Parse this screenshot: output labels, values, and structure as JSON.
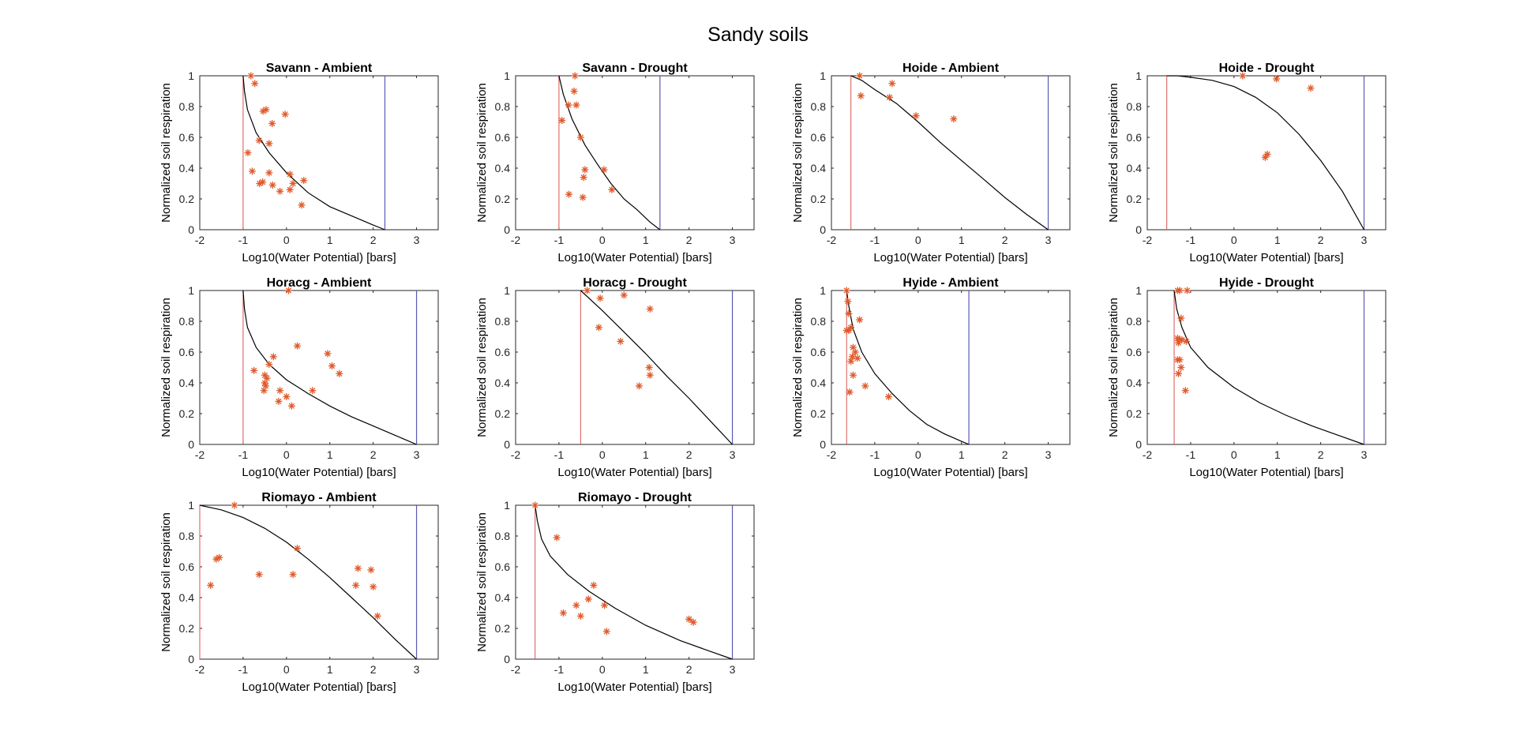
{
  "figure": {
    "title": "Sandy soils",
    "colors": {
      "axes": "#262626",
      "model_curve": "#000000",
      "lower_limit_line": "#d9534f",
      "upper_limit_line": "#5a5ab4",
      "observations": "#e05a2b"
    }
  },
  "chart_data": [
    {
      "type": "scatter",
      "title": "Savann - Ambient",
      "xlabel": "Log10(Water Potential) [bars]",
      "ylabel": "Normalized soil respiration",
      "xlim": [
        -2,
        3.5
      ],
      "ylim": [
        0,
        1
      ],
      "xticks": [
        -2,
        -1,
        0,
        1,
        2,
        3
      ],
      "yticks": [
        0,
        0.2,
        0.4,
        0.6,
        0.8,
        1
      ],
      "grid": false,
      "lower_limit": -1.0,
      "upper_limit": 2.27,
      "curve": [
        [
          -1.0,
          1.0
        ],
        [
          -0.97,
          0.9
        ],
        [
          -0.9,
          0.78
        ],
        [
          -0.7,
          0.63
        ],
        [
          -0.4,
          0.5
        ],
        [
          0,
          0.37
        ],
        [
          0.5,
          0.24
        ],
        [
          1.0,
          0.15
        ],
        [
          1.5,
          0.09
        ],
        [
          2.0,
          0.03
        ],
        [
          2.27,
          0.0
        ]
      ],
      "points": [
        [
          -0.82,
          1.0
        ],
        [
          -0.73,
          0.95
        ],
        [
          -0.54,
          0.77
        ],
        [
          -0.47,
          0.78
        ],
        [
          -0.89,
          0.5
        ],
        [
          -0.79,
          0.38
        ],
        [
          -0.63,
          0.58
        ],
        [
          -0.4,
          0.56
        ],
        [
          -0.33,
          0.69
        ],
        [
          -0.03,
          0.75
        ],
        [
          -0.4,
          0.37
        ],
        [
          -0.55,
          0.31
        ],
        [
          -0.62,
          0.3
        ],
        [
          -0.32,
          0.29
        ],
        [
          -0.15,
          0.25
        ],
        [
          0.08,
          0.36
        ],
        [
          0.15,
          0.3
        ],
        [
          0.08,
          0.26
        ],
        [
          0.4,
          0.32
        ],
        [
          0.35,
          0.16
        ]
      ]
    },
    {
      "type": "scatter",
      "title": "Savann - Drought",
      "xlabel": "Log10(Water Potential) [bars]",
      "ylabel": "Normalized soil respiration",
      "xlim": [
        -2,
        3.5
      ],
      "ylim": [
        0,
        1
      ],
      "xticks": [
        -2,
        -1,
        0,
        1,
        2,
        3
      ],
      "yticks": [
        0,
        0.2,
        0.4,
        0.6,
        0.8,
        1
      ],
      "grid": false,
      "lower_limit": -1.0,
      "upper_limit": 1.33,
      "curve": [
        [
          -1.0,
          1.0
        ],
        [
          -0.9,
          0.88
        ],
        [
          -0.7,
          0.72
        ],
        [
          -0.4,
          0.55
        ],
        [
          -0.1,
          0.42
        ],
        [
          0.2,
          0.3
        ],
        [
          0.5,
          0.2
        ],
        [
          0.8,
          0.13
        ],
        [
          1.1,
          0.05
        ],
        [
          1.33,
          0.0
        ]
      ],
      "points": [
        [
          -0.63,
          1.0
        ],
        [
          -0.65,
          0.9
        ],
        [
          -0.78,
          0.81
        ],
        [
          -0.6,
          0.81
        ],
        [
          -0.93,
          0.71
        ],
        [
          -0.5,
          0.6
        ],
        [
          -0.4,
          0.39
        ],
        [
          -0.43,
          0.34
        ],
        [
          0.04,
          0.39
        ],
        [
          -0.77,
          0.23
        ],
        [
          -0.45,
          0.21
        ],
        [
          0.22,
          0.26
        ]
      ]
    },
    {
      "type": "scatter",
      "title": "Hoide - Ambient",
      "xlabel": "Log10(Water Potential) [bars]",
      "ylabel": "Normalized soil respiration",
      "xlim": [
        -2,
        3.5
      ],
      "ylim": [
        0,
        1
      ],
      "xticks": [
        -2,
        -1,
        0,
        1,
        2,
        3
      ],
      "yticks": [
        0,
        0.2,
        0.4,
        0.6,
        0.8,
        1
      ],
      "grid": false,
      "lower_limit": -1.55,
      "upper_limit": 3.0,
      "curve": [
        [
          -1.55,
          1.0
        ],
        [
          -1.3,
          0.97
        ],
        [
          -1.0,
          0.91
        ],
        [
          -0.5,
          0.82
        ],
        [
          0,
          0.7
        ],
        [
          0.5,
          0.57
        ],
        [
          1.0,
          0.45
        ],
        [
          1.5,
          0.33
        ],
        [
          2.0,
          0.21
        ],
        [
          2.5,
          0.1
        ],
        [
          3.0,
          0.0
        ]
      ],
      "points": [
        [
          -1.35,
          1.0
        ],
        [
          -1.32,
          0.87
        ],
        [
          -0.6,
          0.95
        ],
        [
          -0.66,
          0.86
        ],
        [
          -0.05,
          0.74
        ],
        [
          0.82,
          0.72
        ]
      ]
    },
    {
      "type": "scatter",
      "title": "Hoide - Drought",
      "xlabel": "Log10(Water Potential) [bars]",
      "ylabel": "Normalized soil respiration",
      "xlim": [
        -2,
        3.5
      ],
      "ylim": [
        0,
        1
      ],
      "xticks": [
        -2,
        -1,
        0,
        1,
        2,
        3
      ],
      "yticks": [
        0,
        0.2,
        0.4,
        0.6,
        0.8,
        1
      ],
      "grid": false,
      "lower_limit": -1.55,
      "upper_limit": 3.0,
      "curve": [
        [
          -1.55,
          1.0
        ],
        [
          -1.3,
          1.0
        ],
        [
          -1.0,
          0.99
        ],
        [
          -0.5,
          0.97
        ],
        [
          0,
          0.93
        ],
        [
          0.5,
          0.86
        ],
        [
          1.0,
          0.76
        ],
        [
          1.5,
          0.62
        ],
        [
          2.0,
          0.45
        ],
        [
          2.5,
          0.25
        ],
        [
          3.0,
          0.0
        ]
      ],
      "points": [
        [
          0.2,
          1.0
        ],
        [
          0.98,
          0.98
        ],
        [
          1.77,
          0.92
        ],
        [
          0.72,
          0.47
        ],
        [
          0.77,
          0.49
        ]
      ]
    },
    {
      "type": "scatter",
      "title": "Horacg - Ambient",
      "xlabel": "Log10(Water Potential) [bars]",
      "ylabel": "Normalized soil respiration",
      "xlim": [
        -2,
        3.5
      ],
      "ylim": [
        0,
        1
      ],
      "xticks": [
        -2,
        -1,
        0,
        1,
        2,
        3
      ],
      "yticks": [
        0,
        0.2,
        0.4,
        0.6,
        0.8,
        1
      ],
      "grid": false,
      "lower_limit": -1.0,
      "upper_limit": 3.0,
      "curve": [
        [
          -1.0,
          1.0
        ],
        [
          -0.97,
          0.88
        ],
        [
          -0.9,
          0.76
        ],
        [
          -0.7,
          0.63
        ],
        [
          -0.4,
          0.52
        ],
        [
          0,
          0.42
        ],
        [
          0.5,
          0.33
        ],
        [
          1.0,
          0.25
        ],
        [
          1.5,
          0.18
        ],
        [
          2.0,
          0.12
        ],
        [
          2.5,
          0.06
        ],
        [
          3.0,
          0.0
        ]
      ],
      "points": [
        [
          0.05,
          1.0
        ],
        [
          -0.75,
          0.48
        ],
        [
          -0.5,
          0.45
        ],
        [
          -0.45,
          0.43
        ],
        [
          -0.5,
          0.4
        ],
        [
          -0.48,
          0.38
        ],
        [
          -0.52,
          0.35
        ],
        [
          -0.4,
          0.52
        ],
        [
          -0.3,
          0.57
        ],
        [
          0.25,
          0.64
        ],
        [
          -0.15,
          0.35
        ],
        [
          -0.18,
          0.28
        ],
        [
          0.0,
          0.31
        ],
        [
          0.12,
          0.25
        ],
        [
          0.6,
          0.35
        ],
        [
          0.95,
          0.59
        ],
        [
          1.05,
          0.51
        ],
        [
          1.22,
          0.46
        ]
      ]
    },
    {
      "type": "scatter",
      "title": "Horacg - Drought",
      "xlabel": "Log10(Water Potential) [bars]",
      "ylabel": "Normalized soil respiration",
      "xlim": [
        -2,
        3.5
      ],
      "ylim": [
        0,
        1
      ],
      "xticks": [
        -2,
        -1,
        0,
        1,
        2,
        3
      ],
      "yticks": [
        0,
        0.2,
        0.4,
        0.6,
        0.8,
        1
      ],
      "grid": false,
      "lower_limit": -0.5,
      "upper_limit": 3.0,
      "curve": [
        [
          -0.5,
          1.0
        ],
        [
          0,
          0.87
        ],
        [
          0.5,
          0.73
        ],
        [
          1.0,
          0.59
        ],
        [
          1.5,
          0.44
        ],
        [
          2.0,
          0.3
        ],
        [
          2.5,
          0.15
        ],
        [
          3.0,
          0.0
        ]
      ],
      "points": [
        [
          -0.35,
          1.0
        ],
        [
          -0.05,
          0.95
        ],
        [
          0.5,
          0.97
        ],
        [
          -0.08,
          0.76
        ],
        [
          0.42,
          0.67
        ],
        [
          1.1,
          0.88
        ],
        [
          1.08,
          0.5
        ],
        [
          1.1,
          0.45
        ],
        [
          0.85,
          0.38
        ]
      ]
    },
    {
      "type": "scatter",
      "title": "Hyide - Ambient",
      "xlabel": "Log10(Water Potential) [bars]",
      "ylabel": "Normalized soil respiration",
      "xlim": [
        -2,
        3.5
      ],
      "ylim": [
        0,
        1
      ],
      "xticks": [
        -2,
        -1,
        0,
        1,
        2,
        3
      ],
      "yticks": [
        0,
        0.2,
        0.4,
        0.6,
        0.8,
        1
      ],
      "grid": false,
      "lower_limit": -1.65,
      "upper_limit": 1.17,
      "curve": [
        [
          -1.65,
          1.0
        ],
        [
          -1.6,
          0.9
        ],
        [
          -1.5,
          0.75
        ],
        [
          -1.3,
          0.6
        ],
        [
          -1.0,
          0.46
        ],
        [
          -0.6,
          0.33
        ],
        [
          -0.2,
          0.22
        ],
        [
          0.2,
          0.13
        ],
        [
          0.6,
          0.07
        ],
        [
          1.0,
          0.02
        ],
        [
          1.17,
          0.0
        ]
      ],
      "points": [
        [
          -1.65,
          1.0
        ],
        [
          -1.62,
          0.93
        ],
        [
          -1.6,
          0.85
        ],
        [
          -1.55,
          0.76
        ],
        [
          -1.65,
          0.74
        ],
        [
          -1.6,
          0.74
        ],
        [
          -1.35,
          0.81
        ],
        [
          -1.5,
          0.63
        ],
        [
          -1.45,
          0.6
        ],
        [
          -1.52,
          0.57
        ],
        [
          -1.55,
          0.54
        ],
        [
          -1.4,
          0.56
        ],
        [
          -1.5,
          0.45
        ],
        [
          -1.22,
          0.38
        ],
        [
          -1.58,
          0.34
        ],
        [
          -0.68,
          0.31
        ]
      ]
    },
    {
      "type": "scatter",
      "title": "Hyide - Drought",
      "xlabel": "Log10(Water Potential) [bars]",
      "ylabel": "Normalized soil respiration",
      "xlim": [
        -2,
        3.5
      ],
      "ylim": [
        0,
        1
      ],
      "xticks": [
        -2,
        -1,
        0,
        1,
        2,
        3
      ],
      "yticks": [
        0,
        0.2,
        0.4,
        0.6,
        0.8,
        1
      ],
      "grid": false,
      "lower_limit": -1.38,
      "upper_limit": 3.0,
      "curve": [
        [
          -1.38,
          1.0
        ],
        [
          -1.32,
          0.88
        ],
        [
          -1.2,
          0.76
        ],
        [
          -1.0,
          0.63
        ],
        [
          -0.6,
          0.5
        ],
        [
          0,
          0.37
        ],
        [
          0.6,
          0.27
        ],
        [
          1.2,
          0.19
        ],
        [
          1.8,
          0.12
        ],
        [
          2.4,
          0.06
        ],
        [
          3.0,
          0.0
        ]
      ],
      "points": [
        [
          -1.3,
          1.0
        ],
        [
          -1.25,
          1.0
        ],
        [
          -1.08,
          1.0
        ],
        [
          -1.22,
          0.82
        ],
        [
          -1.3,
          0.69
        ],
        [
          -1.25,
          0.68
        ],
        [
          -1.2,
          0.68
        ],
        [
          -1.1,
          0.67
        ],
        [
          -1.28,
          0.66
        ],
        [
          -1.3,
          0.55
        ],
        [
          -1.25,
          0.55
        ],
        [
          -1.22,
          0.5
        ],
        [
          -1.28,
          0.46
        ],
        [
          -1.12,
          0.35
        ]
      ]
    },
    {
      "type": "scatter",
      "title": "Riomayo - Ambient",
      "xlabel": "Log10(Water Potential) [bars]",
      "ylabel": "Normalized soil respiration",
      "xlim": [
        -2,
        3.5
      ],
      "ylim": [
        0,
        1
      ],
      "xticks": [
        -2,
        -1,
        0,
        1,
        2,
        3
      ],
      "yticks": [
        0,
        0.2,
        0.4,
        0.6,
        0.8,
        1
      ],
      "grid": false,
      "lower_limit": -2.0,
      "upper_limit": 3.0,
      "curve": [
        [
          -2.0,
          1.0
        ],
        [
          -1.5,
          0.97
        ],
        [
          -1.0,
          0.92
        ],
        [
          -0.5,
          0.85
        ],
        [
          0,
          0.76
        ],
        [
          0.5,
          0.65
        ],
        [
          1.0,
          0.53
        ],
        [
          1.5,
          0.4
        ],
        [
          2.0,
          0.27
        ],
        [
          2.5,
          0.13
        ],
        [
          3.0,
          0.0
        ]
      ],
      "points": [
        [
          -1.2,
          1.0
        ],
        [
          -1.62,
          0.65
        ],
        [
          -1.55,
          0.66
        ],
        [
          -1.75,
          0.48
        ],
        [
          -0.63,
          0.55
        ],
        [
          0.15,
          0.55
        ],
        [
          0.25,
          0.72
        ],
        [
          1.65,
          0.59
        ],
        [
          1.95,
          0.58
        ],
        [
          1.6,
          0.48
        ],
        [
          2.0,
          0.47
        ],
        [
          2.1,
          0.28
        ]
      ]
    },
    {
      "type": "scatter",
      "title": "Riomayo - Drought",
      "xlabel": "Log10(Water Potential) [bars]",
      "ylabel": "Normalized soil respiration",
      "xlim": [
        -2,
        3.5
      ],
      "ylim": [
        0,
        1
      ],
      "xticks": [
        -2,
        -1,
        0,
        1,
        2,
        3
      ],
      "yticks": [
        0,
        0.2,
        0.4,
        0.6,
        0.8,
        1
      ],
      "grid": false,
      "lower_limit": -1.55,
      "upper_limit": 3.0,
      "curve": [
        [
          -1.55,
          1.0
        ],
        [
          -1.5,
          0.9
        ],
        [
          -1.4,
          0.78
        ],
        [
          -1.2,
          0.67
        ],
        [
          -0.8,
          0.55
        ],
        [
          -0.3,
          0.44
        ],
        [
          0.3,
          0.33
        ],
        [
          1.0,
          0.22
        ],
        [
          1.8,
          0.12
        ],
        [
          2.5,
          0.05
        ],
        [
          3.0,
          0.0
        ]
      ],
      "points": [
        [
          -1.55,
          1.0
        ],
        [
          -1.05,
          0.79
        ],
        [
          -0.9,
          0.3
        ],
        [
          -0.6,
          0.35
        ],
        [
          -0.5,
          0.28
        ],
        [
          -0.32,
          0.39
        ],
        [
          -0.2,
          0.48
        ],
        [
          0.05,
          0.35
        ],
        [
          0.1,
          0.18
        ],
        [
          2.0,
          0.26
        ],
        [
          2.1,
          0.24
        ]
      ]
    }
  ]
}
